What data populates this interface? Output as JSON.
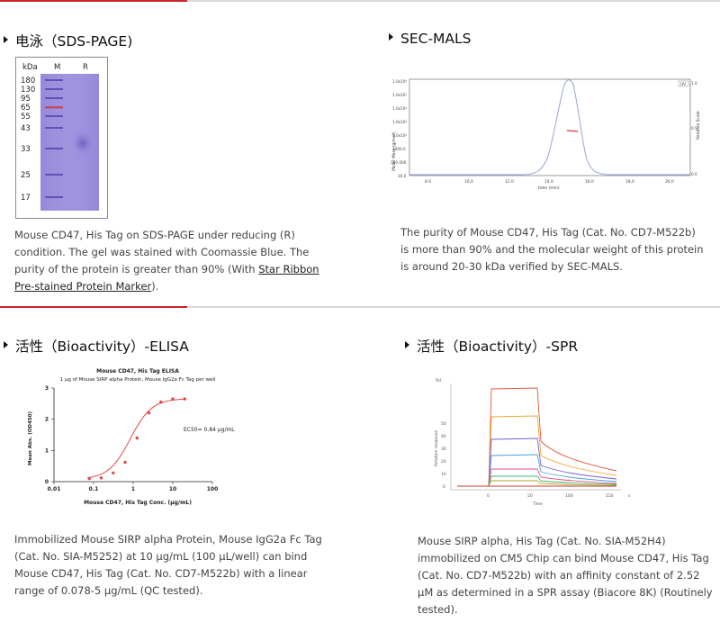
{
  "sections": {
    "sds": {
      "title": "电泳（SDS-PAGE)",
      "gel_lanes": [
        "kDa",
        "M",
        "R"
      ],
      "marker_kda": [
        "180",
        "130",
        "95",
        "65",
        "55",
        "43",
        "33",
        "25",
        "17"
      ],
      "desc_part1": "Mouse CD47, His Tag on SDS-PAGE under reducing (R) condition. The gel was stained with Coomassie Blue. The purity of the protein is greater than 90% (With ",
      "desc_link": "Star Ribbon Pre-stained Protein Marker",
      "desc_part2": ")."
    },
    "sec": {
      "title": "SEC-MALS",
      "desc": "The purity of Mouse CD47, His Tag (Cat. No. CD7-M522b) is more than 90% and the molecular weight of this protein is around 20-30 kDa verified by SEC-MALS.",
      "ylabel": "Molar Mass (g/mol)",
      "y2label": "Relative Scale",
      "xlabel": "time (min)",
      "legend": "UV",
      "yticks": [
        "1.0x10⁶",
        "1.0x10⁵",
        "1.0x10⁴",
        "1.0x10⁴",
        "1.0x10⁴",
        "1000.0",
        "100.000",
        "10.0"
      ],
      "xticks": [
        "8.0",
        "10.0",
        "12.0",
        "14.0",
        "16.0",
        "18.0",
        "20.0"
      ],
      "y2ticks": [
        "1.0",
        "0.5",
        "0.0"
      ]
    },
    "elisa": {
      "title": "活性（Bioactivity）-ELISA",
      "desc": "Immobilized Mouse SIRP alpha Protein, Mouse IgG2a Fc Tag (Cat. No. SIA-M5252) at 10 μg/mL (100 μL/well) can bind Mouse CD47, His Tag (Cat. No. CD7-M522b) with a linear range of 0.078-5 μg/mL (QC tested)."
    },
    "spr": {
      "title": "活性（Bioactivity）-SPR",
      "desc": "Mouse SIRP alpha, His Tag (Cat. No. SIA-M52H4) immobilized on CM5 Chip can bind Mouse CD47, His Tag (Cat. No. CD7-M522b) with an affinity constant of 2.52 μM as determined in a SPR assay (Biacore 8K) (Routinely tested).",
      "ylabel": "Relative response",
      "xlabel": "Time",
      "x_unit": "s",
      "y_unit": "RU",
      "xticks": [
        "0",
        "50",
        "100",
        "150"
      ],
      "yticks": [
        "0",
        "10",
        "20",
        "30",
        "40",
        "50"
      ]
    }
  },
  "chart_data": [
    {
      "type": "line",
      "title": "Mouse CD47, His Tag ELISA",
      "subtitle": "1 μg of Mouse SIRP alpha Protein, Mouse IgG2a Fc Tag per well",
      "xlabel": "Mouse CD47, His Tag Conc. (μg/mL)",
      "ylabel": "Mean Abs. (OD450)",
      "xscale": "log",
      "xlim": [
        0.01,
        100
      ],
      "ylim": [
        0,
        3
      ],
      "xticks": [
        "0.01",
        "0.1",
        "1",
        "10",
        "100"
      ],
      "yticks": [
        "0",
        "1",
        "2",
        "3"
      ],
      "annotation": "EC50= 0.84 μg/mL",
      "series_color": "#e0474c",
      "x": [
        0.078,
        0.156,
        0.3125,
        0.625,
        1.25,
        2.5,
        5,
        10,
        20
      ],
      "y": [
        0.1,
        0.12,
        0.28,
        0.62,
        1.4,
        2.2,
        2.55,
        2.65,
        2.65
      ]
    }
  ]
}
